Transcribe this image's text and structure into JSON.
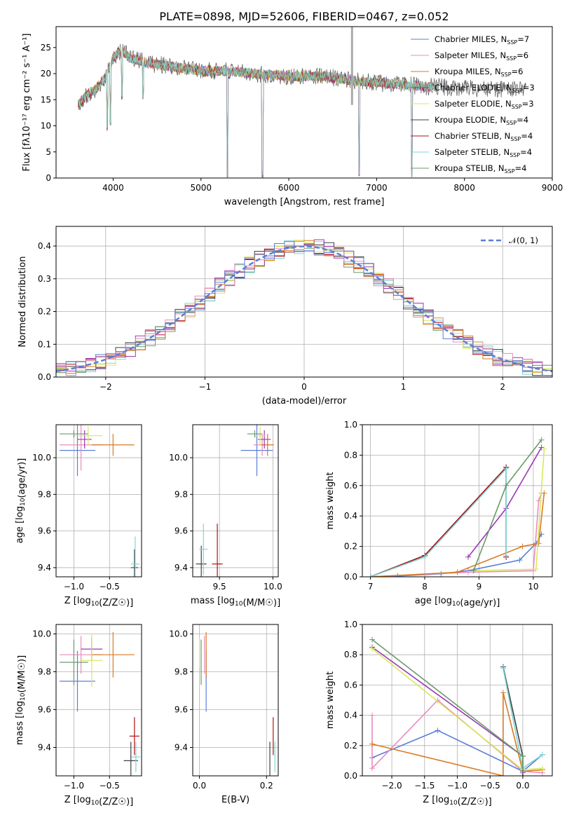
{
  "title": "PLATE=0898, MJD=52606, FIBERID=0467, z=0.052",
  "colors": [
    "#5b7fd6",
    "#e88cbf",
    "#d97a22",
    "#9a38b5",
    "#d8e85a",
    "#404040",
    "#b01010",
    "#82d4d4",
    "#6b9a6b"
  ],
  "chart_data": [
    {
      "type": "line",
      "id": "spectrum",
      "xlabel": "wavelength [Angstrom, rest frame]",
      "ylabel": "Flux [fλ10⁻¹⁷ erg cm⁻² s⁻¹ A⁻¹]",
      "xlim": [
        3350,
        9000
      ],
      "ylim": [
        0,
        29
      ],
      "xticks": [
        4000,
        5000,
        6000,
        7000,
        8000,
        9000
      ],
      "yticks": [
        0,
        5,
        10,
        15,
        20,
        25
      ],
      "grid": false,
      "legend_position": "upper-right",
      "legend": [
        {
          "main": "Chabrier MILES, N",
          "sub": "SSP",
          "tail": "=7"
        },
        {
          "main": "Salpeter MILES, N",
          "sub": "SSP",
          "tail": "=6"
        },
        {
          "main": "Kroupa MILES, N",
          "sub": "SSP",
          "tail": "=6"
        },
        {
          "main": "Chabrier ELODIE, N",
          "sub": "SSP",
          "tail": "=3"
        },
        {
          "main": "Salpeter ELODIE, N",
          "sub": "SSP",
          "tail": "=3"
        },
        {
          "main": "Kroupa ELODIE, N",
          "sub": "SSP",
          "tail": "=4"
        },
        {
          "main": "Chabrier STELIB, N",
          "sub": "SSP",
          "tail": "=4"
        },
        {
          "main": "Salpeter STELIB, N",
          "sub": "SSP",
          "tail": "=4"
        },
        {
          "main": "Kroupa STELIB, N",
          "sub": "SSP",
          "tail": "=4"
        }
      ],
      "continuum": {
        "x": [
          3600,
          3700,
          3800,
          3900,
          4000,
          4100,
          4200,
          4400,
          4600,
          4800,
          5000,
          5300,
          5600,
          6000,
          6400,
          6800,
          7200,
          7600,
          8000,
          8400,
          8700
        ],
        "y": [
          14,
          16,
          17,
          19,
          23,
          24.5,
          23,
          22,
          21.5,
          21,
          20.5,
          20.5,
          20,
          19.5,
          19.5,
          18.5,
          18,
          17.5,
          17.3,
          17,
          17
        ]
      },
      "dips": [
        {
          "x": 3934,
          "y": 9
        },
        {
          "x": 3968,
          "y": 10
        },
        {
          "x": 4102,
          "y": 15
        },
        {
          "x": 4340,
          "y": 15
        },
        {
          "x": 5300,
          "y": 0
        },
        {
          "x": 5700,
          "y": 0
        },
        {
          "x": 6800,
          "y": 0
        },
        {
          "x": 7400,
          "y": 0
        }
      ],
      "gap_line": {
        "x": 6720,
        "ylim": [
          14,
          29
        ]
      }
    },
    {
      "type": "step",
      "id": "residuals",
      "xlabel": "(data-model)/error",
      "ylabel": "Normed distribution",
      "xlim": [
        -2.5,
        2.5
      ],
      "ylim": [
        0,
        0.46
      ],
      "xticks": [
        -2,
        -1,
        0,
        1,
        2
      ],
      "yticks": [
        0.0,
        0.1,
        0.2,
        0.3,
        0.4
      ],
      "grid": true,
      "bin_width": 0.1,
      "bin_start": -2.5,
      "dashed_curve": {
        "label": "𝒩(0, 1)",
        "color": "#5b7fd6"
      },
      "legend_position": "upper-right"
    },
    {
      "type": "errorbar",
      "id": "age-vs-z",
      "xlabel": "Z [log10(Z/Z☉)]",
      "ylabel": "age  [log10(age/yr)]",
      "xlim": [
        -1.25,
        -0.05
      ],
      "ylim": [
        9.35,
        10.18
      ],
      "xticks": [
        -1.0,
        -0.5
      ],
      "yticks": [
        9.4,
        9.6,
        9.8,
        10.0
      ],
      "grid": true,
      "points": [
        {
          "x": -0.95,
          "xerr": 0.25,
          "y": 10.04,
          "yerr": 0.14,
          "c": 0
        },
        {
          "x": -0.9,
          "xerr": 0.3,
          "y": 10.07,
          "yerr": 0.14,
          "c": 1
        },
        {
          "x": -0.45,
          "xerr": 0.3,
          "y": 10.07,
          "yerr": 0.06,
          "c": 2
        },
        {
          "x": -0.85,
          "xerr": 0.1,
          "y": 10.1,
          "yerr": 0.05,
          "c": 3
        },
        {
          "x": -0.8,
          "xerr": 0.2,
          "y": 10.12,
          "yerr": 0.05,
          "c": 4
        },
        {
          "x": -1.0,
          "xerr": 0.2,
          "y": 10.13,
          "yerr": 0.02,
          "c": 8
        },
        {
          "x": -0.15,
          "xerr": 0.05,
          "y": 9.4,
          "yerr": 0.1,
          "c": 5
        },
        {
          "x": -0.14,
          "xerr": 0.06,
          "y": 9.42,
          "yerr": 0.15,
          "c": 7
        }
      ]
    },
    {
      "type": "errorbar",
      "id": "age-vs-mass",
      "xlabel": "mass [log10(M/M☉)]",
      "ylabel": "",
      "xlim": [
        9.25,
        10.05
      ],
      "ylim": [
        9.35,
        10.18
      ],
      "xticks": [
        9.5,
        10.0
      ],
      "yticks": [
        9.4,
        9.6,
        9.8,
        10.0
      ],
      "grid": true,
      "points": [
        {
          "x": 9.85,
          "xerr": 0.15,
          "y": 10.04,
          "yerr": 0.14,
          "c": 0
        },
        {
          "x": 9.9,
          "xerr": 0.08,
          "y": 10.07,
          "yerr": 0.06,
          "c": 1
        },
        {
          "x": 9.95,
          "xerr": 0.06,
          "y": 10.07,
          "yerr": 0.06,
          "c": 2
        },
        {
          "x": 9.92,
          "xerr": 0.06,
          "y": 10.1,
          "yerr": 0.05,
          "c": 3
        },
        {
          "x": 9.88,
          "xerr": 0.05,
          "y": 10.12,
          "yerr": 0.05,
          "c": 4
        },
        {
          "x": 9.83,
          "xerr": 0.07,
          "y": 10.13,
          "yerr": 0.02,
          "c": 8
        },
        {
          "x": 9.33,
          "xerr": 0.05,
          "y": 9.42,
          "yerr": 0.1,
          "c": 5
        },
        {
          "x": 9.48,
          "xerr": 0.05,
          "y": 9.42,
          "yerr": 0.22,
          "c": 6
        },
        {
          "x": 9.35,
          "xerr": 0.04,
          "y": 9.5,
          "yerr": 0.14,
          "c": 7
        }
      ]
    },
    {
      "type": "line",
      "id": "weight-vs-age",
      "xlabel": "age  [log10(age/yr)]",
      "ylabel": "mass weight",
      "xlim": [
        6.85,
        10.35
      ],
      "ylim": [
        0,
        1.0
      ],
      "xticks": [
        7,
        8,
        9,
        10
      ],
      "yticks": [
        0.0,
        0.2,
        0.4,
        0.6,
        0.8,
        1.0
      ],
      "grid": true,
      "series": [
        {
          "c": 0,
          "x": [
            7.0,
            7.5,
            8.3,
            8.8,
            9.75,
            10.05,
            10.15
          ],
          "y": [
            0.0,
            0.005,
            0.02,
            0.04,
            0.11,
            0.22,
            0.28
          ]
        },
        {
          "c": 1,
          "x": [
            7.0,
            8.8,
            10.0,
            10.1,
            10.15
          ],
          "y": [
            0.0,
            0.03,
            0.04,
            0.5,
            0.55
          ]
        },
        {
          "c": 2,
          "x": [
            7.0,
            8.6,
            9.8,
            10.1,
            10.2
          ],
          "y": [
            0.0,
            0.03,
            0.2,
            0.22,
            0.55
          ]
        },
        {
          "c": 3,
          "x": [
            8.8,
            9.5,
            10.15
          ],
          "y": [
            0.13,
            0.45,
            0.85
          ]
        },
        {
          "c": 4,
          "x": [
            8.9,
            10.05,
            10.2
          ],
          "y": [
            0.04,
            0.05,
            0.84
          ]
        },
        {
          "c": 5,
          "x": [
            7.0,
            8.0,
            9.5,
            9.5
          ],
          "y": [
            0.0,
            0.14,
            0.72,
            0.13
          ]
        },
        {
          "c": 6,
          "x": [
            7.0,
            8.0,
            9.5,
            9.5
          ],
          "y": [
            0.0,
            0.14,
            0.72,
            0.13
          ]
        },
        {
          "c": 7,
          "x": [
            7.0,
            8.0,
            9.5,
            9.5
          ],
          "y": [
            0.0,
            0.13,
            0.71,
            0.14
          ]
        },
        {
          "c": 8,
          "x": [
            8.9,
            9.5,
            10.15
          ],
          "y": [
            0.04,
            0.6,
            0.9
          ]
        }
      ]
    },
    {
      "type": "errorbar",
      "id": "mass-vs-z",
      "xlabel": "Z [log10(Z/Z☉)]",
      "ylabel": "mass [log10(M/M☉)]",
      "xlim": [
        -1.25,
        -0.05
      ],
      "ylim": [
        9.25,
        10.05
      ],
      "xticks": [
        -1.0,
        -0.5
      ],
      "yticks": [
        9.4,
        9.6,
        9.8,
        10.0
      ],
      "grid": true,
      "points": [
        {
          "x": -0.95,
          "xerr": 0.25,
          "y": 9.75,
          "yerr": 0.16,
          "c": 0
        },
        {
          "x": -0.9,
          "xerr": 0.3,
          "y": 9.89,
          "yerr": 0.1,
          "c": 1
        },
        {
          "x": -0.45,
          "xerr": 0.3,
          "y": 9.89,
          "yerr": 0.12,
          "c": 2
        },
        {
          "x": -0.75,
          "xerr": 0.15,
          "y": 9.92,
          "yerr": 0.06,
          "c": 3
        },
        {
          "x": -0.75,
          "xerr": 0.15,
          "y": 9.86,
          "yerr": 0.14,
          "c": 4
        },
        {
          "x": -1.0,
          "xerr": 0.2,
          "y": 9.85,
          "yerr": 0.12,
          "c": 8
        },
        {
          "x": -0.2,
          "xerr": 0.1,
          "y": 9.33,
          "yerr": 0.1,
          "c": 5
        },
        {
          "x": -0.15,
          "xerr": 0.07,
          "y": 9.46,
          "yerr": 0.1,
          "c": 6
        },
        {
          "x": -0.13,
          "xerr": 0.06,
          "y": 9.35,
          "yerr": 0.08,
          "c": 7
        }
      ]
    },
    {
      "type": "errorbar",
      "id": "mass-vs-ebv",
      "xlabel": "E(B-V)",
      "ylabel": "",
      "xlim": [
        -0.02,
        0.235
      ],
      "ylim": [
        9.25,
        10.05
      ],
      "xticks": [
        0.0,
        0.2
      ],
      "yticks": [
        9.4,
        9.6,
        9.8,
        10.0
      ],
      "grid": true,
      "points": [
        {
          "x": 0.02,
          "xerr": 0.0,
          "y": 9.75,
          "yerr": 0.16,
          "c": 0
        },
        {
          "x": 0.015,
          "xerr": 0.0,
          "y": 9.89,
          "yerr": 0.1,
          "c": 1
        },
        {
          "x": 0.02,
          "xerr": 0.0,
          "y": 9.89,
          "yerr": 0.12,
          "c": 2
        },
        {
          "x": 0.0,
          "xerr": 0.0,
          "y": 9.9,
          "yerr": 0.08,
          "c": 4
        },
        {
          "x": 0.005,
          "xerr": 0.0,
          "y": 9.85,
          "yerr": 0.12,
          "c": 8
        },
        {
          "x": 0.21,
          "xerr": 0.0,
          "y": 9.33,
          "yerr": 0.1,
          "c": 5
        },
        {
          "x": 0.22,
          "xerr": 0.0,
          "y": 9.46,
          "yerr": 0.1,
          "c": 6
        },
        {
          "x": 0.225,
          "xerr": 0.0,
          "y": 9.35,
          "yerr": 0.08,
          "c": 7
        }
      ]
    },
    {
      "type": "line",
      "id": "weight-vs-z",
      "xlabel": "Z [log10(Z/Z☉)]",
      "ylabel": "mass weight",
      "xlim": [
        -2.45,
        0.45
      ],
      "ylim": [
        0,
        1.0
      ],
      "xticks": [
        -2.0,
        -1.5,
        -1.0,
        -0.5,
        0.0
      ],
      "yticks": [
        0.0,
        0.2,
        0.4,
        0.6,
        0.8,
        1.0
      ],
      "grid": true,
      "series": [
        {
          "c": 0,
          "x": [
            -2.3,
            -1.3,
            0.0,
            0.3
          ],
          "y": [
            0.12,
            0.3,
            0.03,
            0.14
          ]
        },
        {
          "c": 1,
          "x": [
            -2.3,
            -2.3,
            -1.3,
            0.0,
            0.3
          ],
          "y": [
            0.4,
            0.05,
            0.5,
            0.03,
            0.02
          ]
        },
        {
          "c": 2,
          "x": [
            -2.3,
            -0.3,
            -0.3,
            0.0,
            0.3
          ],
          "y": [
            0.21,
            0.0,
            0.55,
            0.03,
            0.04
          ]
        },
        {
          "c": 3,
          "x": [
            -2.3,
            0.0,
            0.0
          ],
          "y": [
            0.85,
            0.13,
            0.02
          ]
        },
        {
          "c": 4,
          "x": [
            -2.3,
            0.0,
            0.3
          ],
          "y": [
            0.84,
            0.04,
            0.05
          ]
        },
        {
          "c": 5,
          "x": [
            -0.3,
            0.0,
            0.0
          ],
          "y": [
            0.72,
            0.13,
            0.0
          ]
        },
        {
          "c": 7,
          "x": [
            -0.3,
            0.0,
            0.3
          ],
          "y": [
            0.71,
            0.05,
            0.14
          ]
        },
        {
          "c": 8,
          "x": [
            -2.3,
            0.0,
            0.0
          ],
          "y": [
            0.9,
            0.13,
            0.03
          ]
        }
      ]
    }
  ]
}
